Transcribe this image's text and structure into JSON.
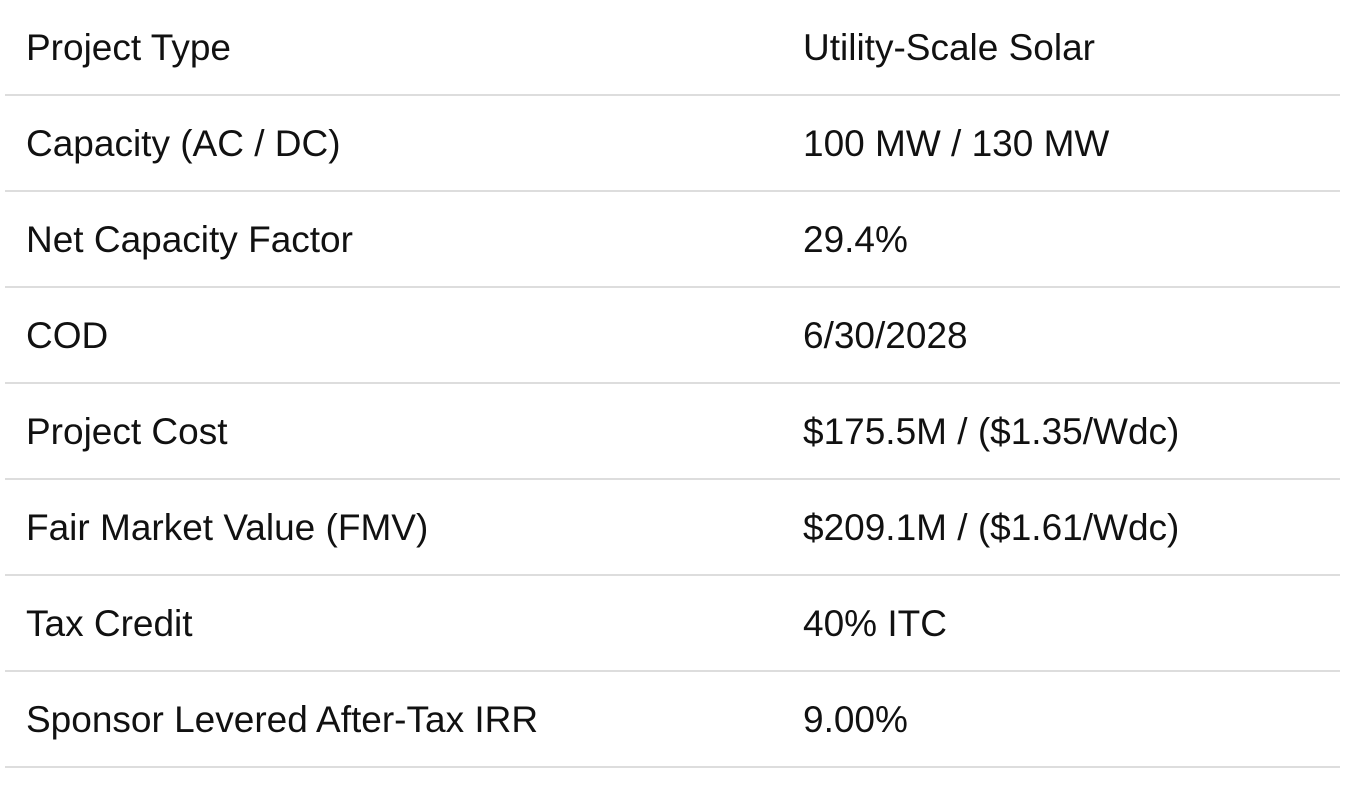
{
  "rows": [
    {
      "label": "Project Type",
      "value": "Utility-Scale Solar"
    },
    {
      "label": "Capacity (AC / DC)",
      "value": "100 MW / 130 MW"
    },
    {
      "label": "Net Capacity Factor",
      "value": "29.4%"
    },
    {
      "label": "COD",
      "value": "6/30/2028"
    },
    {
      "label": "Project Cost",
      "value": "$175.5M / ($1.35/Wdc)"
    },
    {
      "label": "Fair Market Value (FMV)",
      "value": "$209.1M / ($1.61/Wdc)"
    },
    {
      "label": "Tax Credit",
      "value": "40% ITC"
    },
    {
      "label": "Sponsor Levered After-Tax IRR",
      "value": "9.00%"
    }
  ]
}
